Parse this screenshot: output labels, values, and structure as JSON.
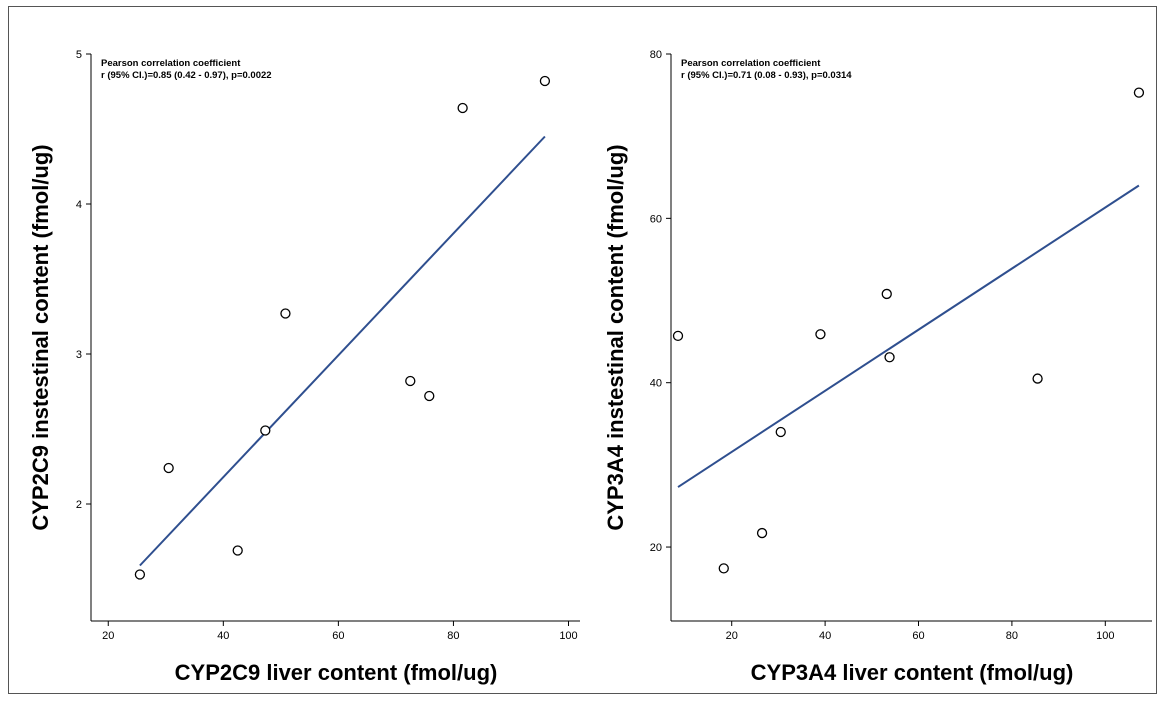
{
  "chart_data": [
    {
      "type": "scatter",
      "xlabel": "CYP2C9 liver content (fmol/ug)",
      "ylabel": "CYP2C9 instestinal content (fmol/ug)",
      "xlim": [
        17,
        102
      ],
      "ylim": [
        1.22,
        5.0
      ],
      "xticks": [
        20,
        40,
        60,
        80,
        100
      ],
      "yticks": [
        2,
        3,
        4,
        5
      ],
      "annotations": [
        "Pearson correlation coefficient",
        "r (95% CI.)=0.85 (0.42 - 0.97), p=0.0022"
      ],
      "points": [
        {
          "x": 25.5,
          "y": 1.53
        },
        {
          "x": 30.5,
          "y": 2.24
        },
        {
          "x": 42.5,
          "y": 1.69
        },
        {
          "x": 47.3,
          "y": 2.49
        },
        {
          "x": 50.8,
          "y": 3.27
        },
        {
          "x": 72.5,
          "y": 2.82
        },
        {
          "x": 75.8,
          "y": 2.72
        },
        {
          "x": 81.6,
          "y": 4.64
        },
        {
          "x": 95.9,
          "y": 4.82
        }
      ],
      "fit_line": {
        "x": [
          25.5,
          95.9
        ],
        "y": [
          1.59,
          4.45
        ]
      },
      "line_color": "#2f4f8f"
    },
    {
      "type": "scatter",
      "xlabel": "CYP3A4 liver content (fmol/ug)",
      "ylabel": "CYP3A4 instestinal content (fmol/ug)",
      "xlim": [
        7,
        110
      ],
      "ylim": [
        11,
        80
      ],
      "xticks": [
        20,
        40,
        60,
        80,
        100
      ],
      "yticks": [
        20,
        40,
        60,
        80
      ],
      "annotations": [
        "Pearson correlation coefficient",
        "r (95% CI.)=0.71 (0.08 - 0.93), p=0.0314"
      ],
      "points": [
        {
          "x": 8.5,
          "y": 45.7
        },
        {
          "x": 18.3,
          "y": 17.4
        },
        {
          "x": 26.5,
          "y": 21.7
        },
        {
          "x": 30.5,
          "y": 34.0
        },
        {
          "x": 39.0,
          "y": 45.9
        },
        {
          "x": 53.2,
          "y": 50.8
        },
        {
          "x": 53.8,
          "y": 43.1
        },
        {
          "x": 85.5,
          "y": 40.5
        },
        {
          "x": 107.2,
          "y": 75.3
        }
      ],
      "fit_line": {
        "x": [
          8.5,
          107.2
        ],
        "y": [
          27.3,
          64.0
        ]
      },
      "line_color": "#2f4f8f"
    }
  ]
}
